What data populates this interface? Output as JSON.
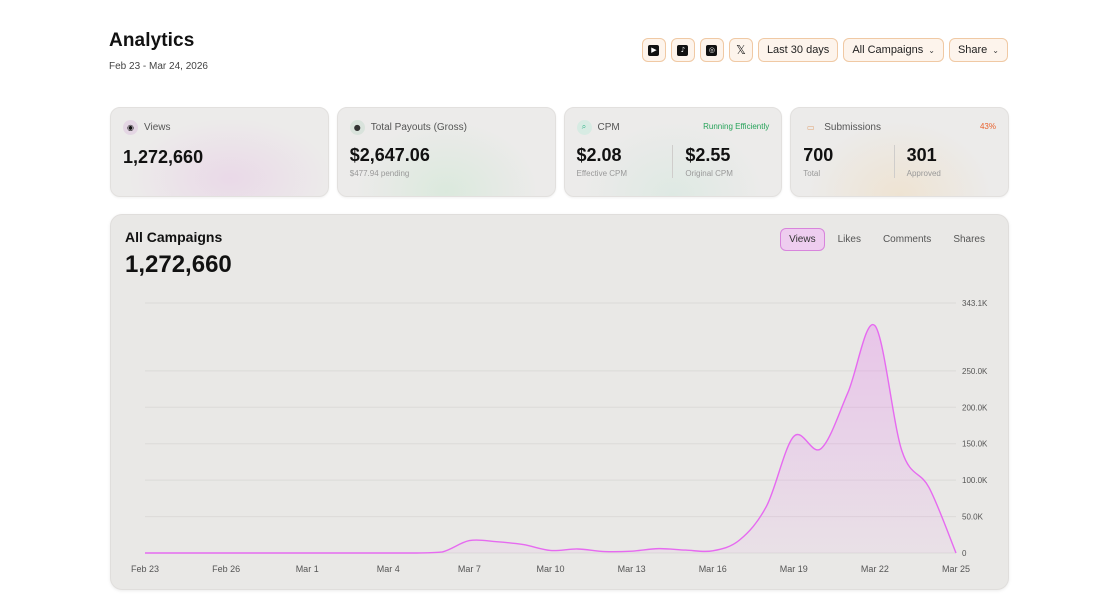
{
  "header": {
    "title": "Analytics",
    "date_range": "Feb 23 - Mar 24, 2026"
  },
  "toolbar": {
    "platforms": [
      {
        "icon": "youtube-icon"
      },
      {
        "icon": "tiktok-icon"
      },
      {
        "icon": "instagram-icon"
      },
      {
        "icon": "x-icon"
      }
    ],
    "period_label": "Last 30 days",
    "campaign_label": "All Campaigns",
    "share_label": "Share"
  },
  "cards": {
    "views": {
      "label": "Views",
      "value": "1,272,660"
    },
    "payouts": {
      "label": "Total Payouts (Gross)",
      "value": "$2,647.06",
      "sub": "$477.94 pending"
    },
    "cpm": {
      "label": "CPM",
      "badge": "Running Efficiently",
      "effective_value": "$2.08",
      "effective_label": "Effective CPM",
      "original_value": "$2.55",
      "original_label": "Original CPM"
    },
    "submissions": {
      "label": "Submissions",
      "badge": "43%",
      "total_value": "700",
      "total_label": "Total",
      "approved_value": "301",
      "approved_label": "Approved"
    }
  },
  "panel": {
    "title": "All Campaigns",
    "total": "1,272,660",
    "tabs": [
      "Views",
      "Likes",
      "Comments",
      "Shares"
    ],
    "active_tab": "Views"
  },
  "colors": {
    "accent": "#e66af0",
    "tab_active_bg": "#eecdef",
    "button_border": "#f0c9a4"
  },
  "chart_data": {
    "type": "area",
    "x": [
      "Feb 23",
      "Feb 24",
      "Feb 25",
      "Feb 26",
      "Feb 27",
      "Feb 28",
      "Mar 1",
      "Mar 2",
      "Mar 3",
      "Mar 4",
      "Mar 5",
      "Mar 6",
      "Mar 7",
      "Mar 8",
      "Mar 9",
      "Mar 10",
      "Mar 11",
      "Mar 12",
      "Mar 13",
      "Mar 14",
      "Mar 15",
      "Mar 16",
      "Mar 17",
      "Mar 18",
      "Mar 19",
      "Mar 20",
      "Mar 21",
      "Mar 22",
      "Mar 23",
      "Mar 24",
      "Mar 25"
    ],
    "values": [
      0,
      0,
      0,
      0,
      0,
      0,
      0,
      0,
      0,
      0,
      0,
      1500,
      17000,
      15500,
      11500,
      3500,
      5500,
      2000,
      2500,
      6000,
      4000,
      3000,
      18000,
      65000,
      160000,
      143000,
      220000,
      312000,
      140000,
      90000,
      0
    ],
    "x_tick_labels": [
      "Feb 23",
      "Feb 26",
      "Mar 1",
      "Mar 4",
      "Mar 7",
      "Mar 10",
      "Mar 13",
      "Mar 16",
      "Mar 19",
      "Mar 22",
      "Mar 25"
    ],
    "y_ticks": [
      0,
      50000,
      100000,
      150000,
      200000,
      250000,
      343100
    ],
    "y_tick_labels": [
      "0",
      "50.0K",
      "100.0K",
      "150.0K",
      "200.0K",
      "250.0K",
      "343.1K"
    ],
    "ylim": [
      0,
      343100
    ],
    "grid": true,
    "legend": "none"
  }
}
